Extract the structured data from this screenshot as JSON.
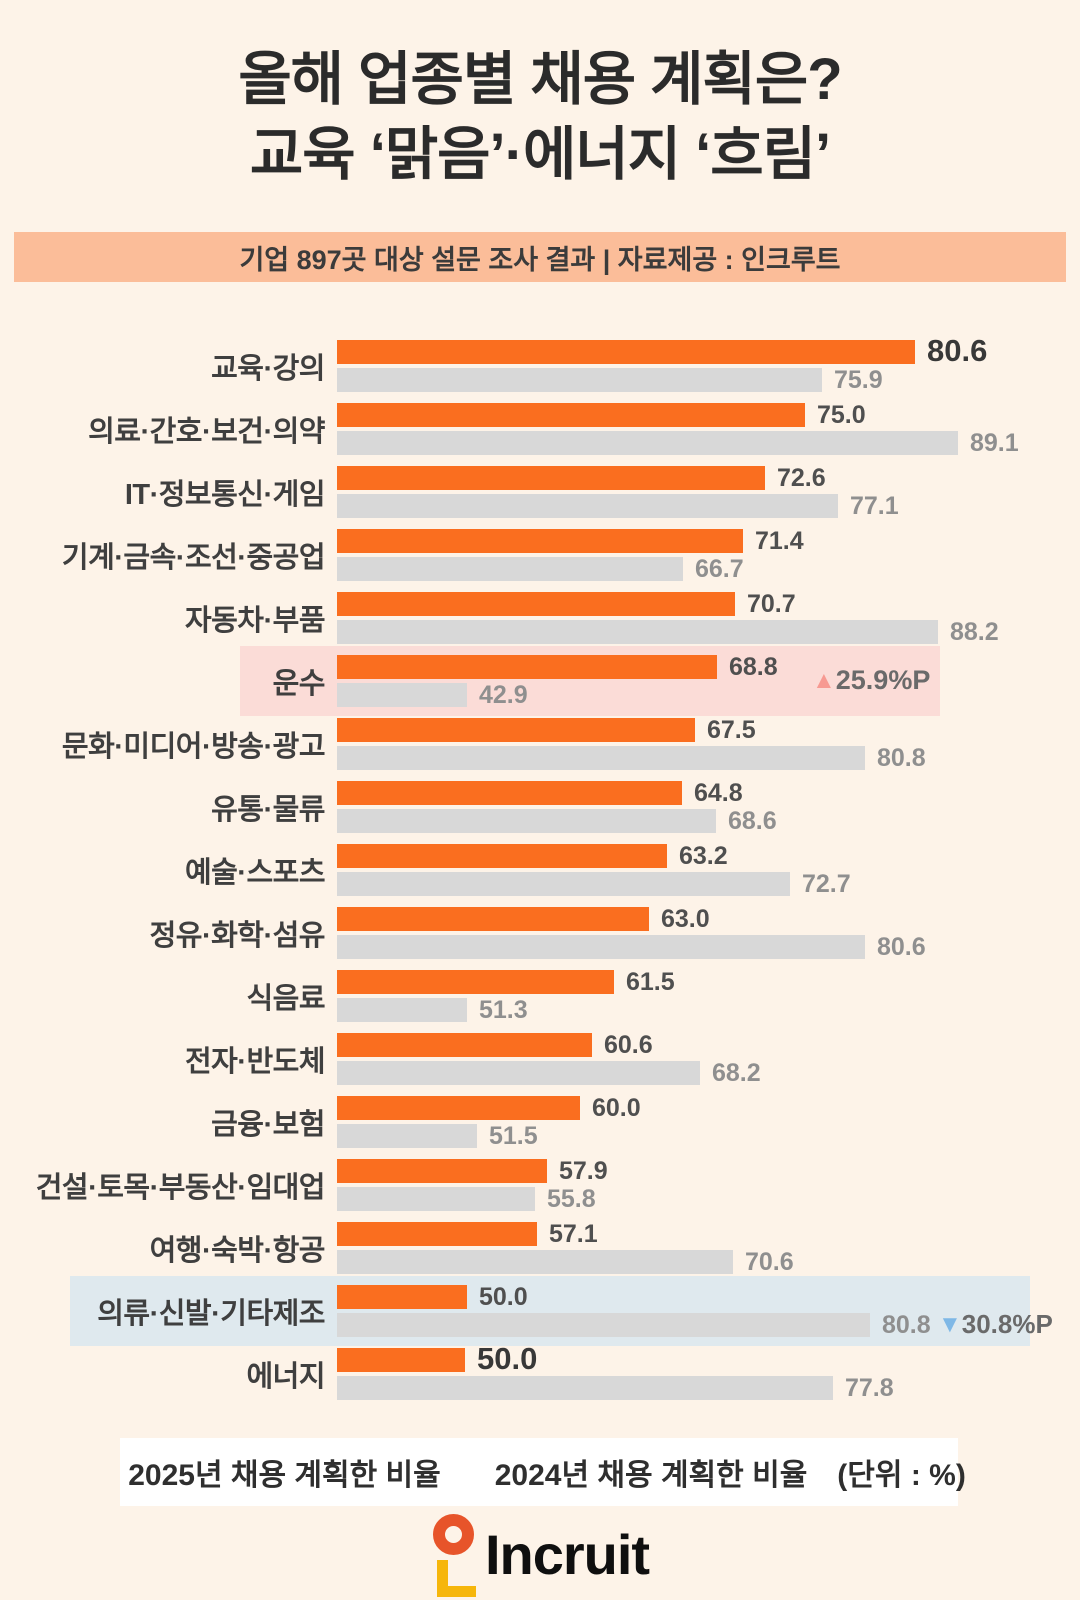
{
  "page": {
    "bg": "#FDF3E8"
  },
  "title": {
    "line1": "올해 업종별 채용 계획은?",
    "line2": "교육 ‘맑음’·에너지 ‘흐림’"
  },
  "banner": {
    "text": "기업 897곳 대상 설문 조사 결과 | 자료제공 : 인크루트"
  },
  "colors": {
    "background": "#FDF3E8",
    "banner_bg": "#FBBD99",
    "bar_2025": "#FA6E1F",
    "bar_2024": "#D8D8D8",
    "highlight_up_bg": "#FBDCD7",
    "highlight_down_bg": "#DFE9EE",
    "up_triangle": "#F79A92",
    "down_triangle": "#7FB8E6"
  },
  "icons": {
    "up_triangle_glyph": "▲",
    "down_triangle_glyph": "▼"
  },
  "chart_data": {
    "type": "bar",
    "orientation": "horizontal",
    "unit": "%",
    "series_names": [
      "2025년 채용 계획한 비율",
      "2024년 채용 계획한 비율"
    ],
    "xlim": [
      0,
      100
    ],
    "rows": [
      {
        "label": "교육·강의",
        "v2025": 80.6,
        "v2024": 75.9,
        "w25": 578,
        "w24": 485,
        "big2025": true
      },
      {
        "label": "의료·간호·보건·의약",
        "v2025": 75.0,
        "v2024": 89.1,
        "w25": 468,
        "w24": 621
      },
      {
        "label": "IT·정보통신·게임",
        "v2025": 72.6,
        "v2024": 77.1,
        "w25": 428,
        "w24": 501
      },
      {
        "label": "기계·금속·조선·중공업",
        "v2025": 71.4,
        "v2024": 66.7,
        "w25": 406,
        "w24": 346
      },
      {
        "label": "자동차·부품",
        "v2025": 70.7,
        "v2024": 88.2,
        "w25": 398,
        "w24": 601
      },
      {
        "label": "운수",
        "v2025": 68.8,
        "v2024": 42.9,
        "w25": 380,
        "w24": 130,
        "highlight": "up",
        "change": "25.9%P"
      },
      {
        "label": "문화·미디어·방송·광고",
        "v2025": 67.5,
        "v2024": 80.8,
        "w25": 358,
        "w24": 528
      },
      {
        "label": "유통·물류",
        "v2025": 64.8,
        "v2024": 68.6,
        "w25": 345,
        "w24": 379
      },
      {
        "label": "예술·스포츠",
        "v2025": 63.2,
        "v2024": 72.7,
        "w25": 330,
        "w24": 453
      },
      {
        "label": "정유·화학·섬유",
        "v2025": 63.0,
        "v2024": 80.6,
        "w25": 312,
        "w24": 528
      },
      {
        "label": "식음료",
        "v2025": 61.5,
        "v2024": 51.3,
        "w25": 277,
        "w24": 130
      },
      {
        "label": "전자·반도체",
        "v2025": 60.6,
        "v2024": 68.2,
        "w25": 255,
        "w24": 363
      },
      {
        "label": "금융·보험",
        "v2025": 60.0,
        "v2024": 51.5,
        "w25": 243,
        "w24": 140
      },
      {
        "label": "건설·토목·부동산·임대업",
        "v2025": 57.9,
        "v2024": 55.8,
        "w25": 210,
        "w24": 198
      },
      {
        "label": "여행·숙박·항공",
        "v2025": 57.1,
        "v2024": 70.6,
        "w25": 200,
        "w24": 396
      },
      {
        "label": "의류·신발·기타제조",
        "v2025": 50.0,
        "v2024": 80.8,
        "w25": 130,
        "w24": 533,
        "highlight": "down",
        "change": "30.8%P"
      },
      {
        "label": "에너지",
        "v2025": 50.0,
        "v2024": 77.8,
        "w25": 128,
        "w24": 496,
        "big2025": true
      }
    ]
  },
  "legend": {
    "item2025": "2025년 채용 계획한 비율",
    "item2024": "2024년 채용 계획한 비율",
    "unit_note": "(단위 : %)"
  },
  "logo": {
    "text": "Incruit"
  }
}
